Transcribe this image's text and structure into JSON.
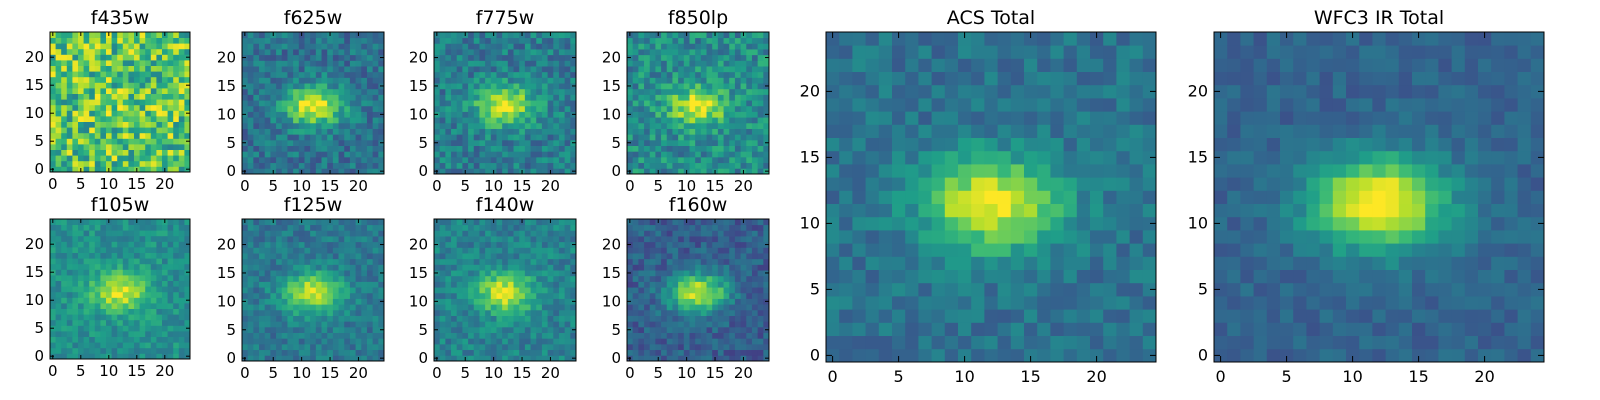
{
  "figure": {
    "colormap": "viridis",
    "colors": {
      "background": "#ffffff",
      "axis": "#000000"
    }
  },
  "chart_data": [
    {
      "type": "heatmap",
      "title": "f435w",
      "rows": 25,
      "cols": 25,
      "xlim": [
        0,
        24
      ],
      "ylim": [
        0,
        24
      ],
      "xticks": [
        "0",
        "5",
        "10",
        "15",
        "20"
      ],
      "yticks": [
        "0",
        "5",
        "10",
        "15",
        "20"
      ],
      "source_strength": 0.05,
      "noise_level": 0.55,
      "background_level": 0.72,
      "seed": 11
    },
    {
      "type": "heatmap",
      "title": "f625w",
      "rows": 25,
      "cols": 25,
      "xlim": [
        0,
        24
      ],
      "ylim": [
        0,
        24
      ],
      "xticks": [
        "0",
        "5",
        "10",
        "15",
        "20"
      ],
      "yticks": [
        "0",
        "5",
        "10",
        "15",
        "20"
      ],
      "source_strength": 0.62,
      "noise_level": 0.28,
      "background_level": 0.38,
      "seed": 23
    },
    {
      "type": "heatmap",
      "title": "f775w",
      "rows": 25,
      "cols": 25,
      "xlim": [
        0,
        24
      ],
      "ylim": [
        0,
        24
      ],
      "xticks": [
        "0",
        "5",
        "10",
        "15",
        "20"
      ],
      "yticks": [
        "0",
        "5",
        "10",
        "15",
        "20"
      ],
      "source_strength": 0.55,
      "noise_level": 0.3,
      "background_level": 0.42,
      "seed": 37
    },
    {
      "type": "heatmap",
      "title": "f850lp",
      "rows": 25,
      "cols": 25,
      "xlim": [
        0,
        24
      ],
      "ylim": [
        0,
        24
      ],
      "xticks": [
        "0",
        "5",
        "10",
        "15",
        "20"
      ],
      "yticks": [
        "0",
        "5",
        "10",
        "15",
        "20"
      ],
      "source_strength": 0.48,
      "noise_level": 0.34,
      "background_level": 0.48,
      "seed": 41
    },
    {
      "type": "heatmap",
      "title": "f105w",
      "rows": 25,
      "cols": 25,
      "xlim": [
        0,
        24
      ],
      "ylim": [
        0,
        24
      ],
      "xticks": [
        "0",
        "5",
        "10",
        "15",
        "20"
      ],
      "yticks": [
        "0",
        "5",
        "10",
        "15",
        "20"
      ],
      "source_strength": 0.45,
      "noise_level": 0.22,
      "background_level": 0.5,
      "seed": 53
    },
    {
      "type": "heatmap",
      "title": "f125w",
      "rows": 25,
      "cols": 25,
      "xlim": [
        0,
        24
      ],
      "ylim": [
        0,
        24
      ],
      "xticks": [
        "0",
        "5",
        "10",
        "15",
        "20"
      ],
      "yticks": [
        "0",
        "5",
        "10",
        "15",
        "20"
      ],
      "source_strength": 0.55,
      "noise_level": 0.22,
      "background_level": 0.4,
      "seed": 61
    },
    {
      "type": "heatmap",
      "title": "f140w",
      "rows": 25,
      "cols": 25,
      "xlim": [
        0,
        24
      ],
      "ylim": [
        0,
        24
      ],
      "xticks": [
        "0",
        "5",
        "10",
        "15",
        "20"
      ],
      "yticks": [
        "0",
        "5",
        "10",
        "15",
        "20"
      ],
      "source_strength": 0.52,
      "noise_level": 0.24,
      "background_level": 0.44,
      "seed": 71
    },
    {
      "type": "heatmap",
      "title": "f160w",
      "rows": 25,
      "cols": 25,
      "xlim": [
        0,
        24
      ],
      "ylim": [
        0,
        24
      ],
      "xticks": [
        "0",
        "5",
        "10",
        "15",
        "20"
      ],
      "yticks": [
        "0",
        "5",
        "10",
        "15",
        "20"
      ],
      "source_strength": 0.65,
      "noise_level": 0.22,
      "background_level": 0.3,
      "seed": 83
    },
    {
      "type": "heatmap",
      "title": "ACS Total",
      "rows": 25,
      "cols": 25,
      "xlim": [
        0,
        24
      ],
      "ylim": [
        0,
        24
      ],
      "xticks": [
        "0",
        "5",
        "10",
        "15",
        "20"
      ],
      "yticks": [
        "0",
        "5",
        "10",
        "15",
        "20"
      ],
      "source_strength": 0.62,
      "noise_level": 0.2,
      "background_level": 0.38,
      "seed": 97
    },
    {
      "type": "heatmap",
      "title": "WFC3 IR Total",
      "rows": 25,
      "cols": 25,
      "xlim": [
        0,
        24
      ],
      "ylim": [
        0,
        24
      ],
      "xticks": [
        "0",
        "5",
        "10",
        "15",
        "20"
      ],
      "yticks": [
        "0",
        "5",
        "10",
        "15",
        "20"
      ],
      "source_strength": 0.75,
      "noise_level": 0.14,
      "background_level": 0.32,
      "seed": 109
    }
  ]
}
